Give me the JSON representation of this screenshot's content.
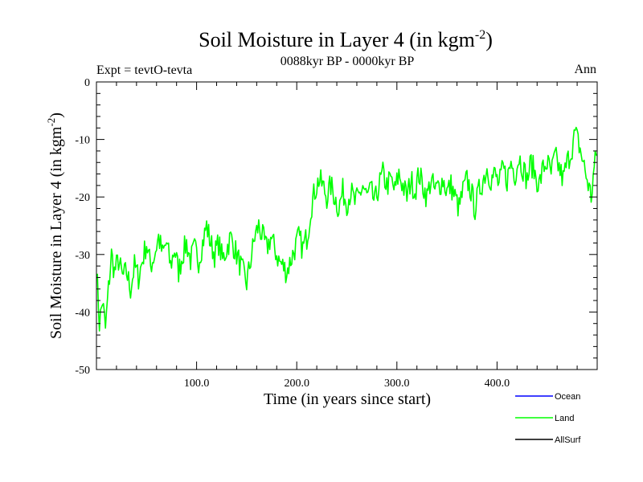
{
  "chart_data": {
    "type": "line",
    "title_main": "Soil Moisture in Layer 4 (in kgm",
    "title_sup": "-2",
    "title_close": ")",
    "subtitle": "0088kyr BP - 0000kyr BP",
    "expt_label": "Expt = tevtO-tevta",
    "season_label": "Ann",
    "xlabel": "Time (in years since start)",
    "ylabel_main": "Soil Moisture in Layer 4 (in kgm",
    "ylabel_sup": "-2",
    "ylabel_close": ")",
    "xlim": [
      0,
      500
    ],
    "ylim": [
      -50,
      0
    ],
    "x_ticks": [
      100,
      200,
      300,
      400
    ],
    "x_tick_labels": [
      "100.0",
      "200.0",
      "300.0",
      "400.0"
    ],
    "y_ticks": [
      0,
      -10,
      -20,
      -30,
      -40,
      -50
    ],
    "y_tick_labels": [
      "0",
      "-10",
      "-20",
      "-30",
      "-40",
      "-50"
    ],
    "legend_position": "bottom-right",
    "legend": [
      {
        "name": "Ocean",
        "color": "#0000ff"
      },
      {
        "name": "Land",
        "color": "#00ff00"
      },
      {
        "name": "AllSurf",
        "color": "#000000"
      }
    ],
    "series": [
      {
        "name": "Land",
        "color": "#00ff00",
        "anchors": [
          [
            0,
            -32
          ],
          [
            3,
            -42
          ],
          [
            6,
            -38
          ],
          [
            9,
            -43
          ],
          [
            12,
            -36
          ],
          [
            15,
            -30
          ],
          [
            18,
            -33
          ],
          [
            22,
            -31
          ],
          [
            26,
            -34
          ],
          [
            30,
            -33
          ],
          [
            34,
            -36
          ],
          [
            38,
            -32
          ],
          [
            42,
            -34
          ],
          [
            46,
            -31
          ],
          [
            50,
            -28
          ],
          [
            54,
            -32
          ],
          [
            58,
            -30
          ],
          [
            62,
            -27
          ],
          [
            66,
            -30
          ],
          [
            70,
            -28
          ],
          [
            74,
            -32
          ],
          [
            78,
            -29
          ],
          [
            82,
            -33
          ],
          [
            86,
            -30
          ],
          [
            90,
            -28
          ],
          [
            94,
            -31
          ],
          [
            98,
            -29
          ],
          [
            102,
            -31
          ],
          [
            106,
            -28
          ],
          [
            110,
            -25
          ],
          [
            114,
            -28
          ],
          [
            118,
            -30
          ],
          [
            122,
            -28
          ],
          [
            126,
            -31
          ],
          [
            130,
            -29
          ],
          [
            134,
            -27
          ],
          [
            138,
            -29
          ],
          [
            142,
            -31
          ],
          [
            146,
            -33
          ],
          [
            150,
            -35
          ],
          [
            154,
            -31
          ],
          [
            158,
            -27
          ],
          [
            162,
            -25
          ],
          [
            166,
            -27
          ],
          [
            170,
            -29
          ],
          [
            174,
            -27
          ],
          [
            178,
            -29
          ],
          [
            182,
            -31
          ],
          [
            186,
            -32
          ],
          [
            190,
            -33
          ],
          [
            194,
            -31
          ],
          [
            198,
            -29
          ],
          [
            202,
            -27
          ],
          [
            206,
            -29
          ],
          [
            210,
            -27
          ],
          [
            212,
            -25
          ],
          [
            214,
            -22
          ],
          [
            218,
            -19
          ],
          [
            222,
            -17
          ],
          [
            226,
            -18
          ],
          [
            230,
            -20
          ],
          [
            234,
            -18
          ],
          [
            238,
            -20
          ],
          [
            242,
            -22
          ],
          [
            246,
            -19
          ],
          [
            250,
            -21
          ],
          [
            254,
            -19
          ],
          [
            258,
            -21
          ],
          [
            262,
            -20
          ],
          [
            266,
            -18
          ],
          [
            270,
            -20
          ],
          [
            274,
            -19
          ],
          [
            278,
            -21
          ],
          [
            282,
            -18
          ],
          [
            286,
            -16
          ],
          [
            290,
            -18
          ],
          [
            294,
            -17
          ],
          [
            298,
            -19
          ],
          [
            302,
            -16
          ],
          [
            306,
            -18
          ],
          [
            310,
            -20
          ],
          [
            314,
            -17
          ],
          [
            318,
            -19
          ],
          [
            322,
            -16
          ],
          [
            326,
            -18
          ],
          [
            330,
            -20
          ],
          [
            334,
            -17
          ],
          [
            338,
            -19
          ],
          [
            342,
            -18
          ],
          [
            346,
            -17
          ],
          [
            350,
            -19
          ],
          [
            354,
            -18
          ],
          [
            358,
            -20
          ],
          [
            362,
            -22
          ],
          [
            366,
            -19
          ],
          [
            370,
            -17
          ],
          [
            374,
            -19
          ],
          [
            378,
            -22
          ],
          [
            382,
            -19
          ],
          [
            386,
            -17
          ],
          [
            390,
            -15
          ],
          [
            394,
            -17
          ],
          [
            398,
            -16
          ],
          [
            402,
            -18
          ],
          [
            406,
            -15
          ],
          [
            410,
            -17
          ],
          [
            414,
            -14
          ],
          [
            418,
            -16
          ],
          [
            422,
            -13
          ],
          [
            426,
            -15
          ],
          [
            430,
            -17
          ],
          [
            434,
            -14
          ],
          [
            438,
            -16
          ],
          [
            442,
            -18
          ],
          [
            446,
            -15
          ],
          [
            450,
            -14
          ],
          [
            454,
            -16
          ],
          [
            458,
            -13
          ],
          [
            462,
            -15
          ],
          [
            466,
            -17
          ],
          [
            470,
            -14
          ],
          [
            474,
            -12
          ],
          [
            478,
            -9
          ],
          [
            482,
            -11
          ],
          [
            486,
            -14
          ],
          [
            490,
            -17
          ],
          [
            494,
            -20
          ],
          [
            497,
            -15
          ],
          [
            500,
            -12
          ]
        ]
      }
    ]
  }
}
